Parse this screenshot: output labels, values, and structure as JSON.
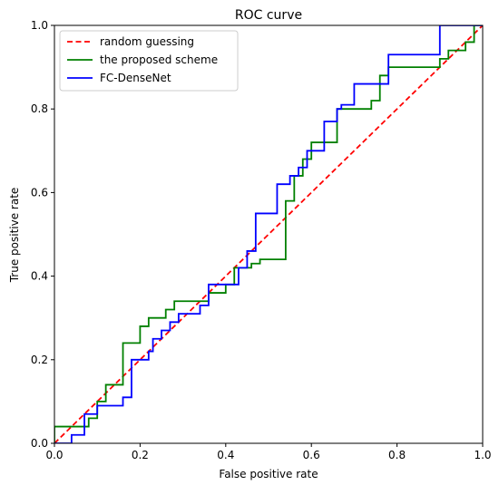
{
  "chart_data": {
    "type": "line",
    "title": "ROC curve",
    "xlabel": "False positive rate",
    "ylabel": "True positive rate",
    "xlim": [
      0.0,
      1.0
    ],
    "ylim": [
      0.0,
      1.0
    ],
    "xticks": [
      "0.0",
      "0.2",
      "0.4",
      "0.6",
      "0.8",
      "1.0"
    ],
    "yticks": [
      "0.0",
      "0.2",
      "0.4",
      "0.6",
      "0.8",
      "1.0"
    ],
    "grid": false,
    "legend_position": "top-left",
    "series": [
      {
        "name": "random guessing",
        "color": "#ff0000",
        "dash": "dashed",
        "x": [
          0.0,
          1.0
        ],
        "y": [
          0.0,
          1.0
        ]
      },
      {
        "name": "the proposed scheme",
        "color": "#008000",
        "dash": "solid",
        "x": [
          0.0,
          0.0,
          0.08,
          0.08,
          0.1,
          0.1,
          0.12,
          0.12,
          0.16,
          0.16,
          0.2,
          0.2,
          0.22,
          0.22,
          0.26,
          0.26,
          0.28,
          0.28,
          0.36,
          0.36,
          0.4,
          0.4,
          0.42,
          0.42,
          0.46,
          0.46,
          0.48,
          0.48,
          0.54,
          0.54,
          0.56,
          0.56,
          0.58,
          0.58,
          0.6,
          0.6,
          0.66,
          0.66,
          0.74,
          0.74,
          0.76,
          0.76,
          0.78,
          0.78,
          0.9,
          0.9,
          0.92,
          0.92,
          0.96,
          0.96,
          0.98,
          0.98,
          1.0
        ],
        "y": [
          0.0,
          0.04,
          0.04,
          0.06,
          0.06,
          0.1,
          0.1,
          0.14,
          0.14,
          0.24,
          0.24,
          0.28,
          0.28,
          0.3,
          0.3,
          0.32,
          0.32,
          0.34,
          0.34,
          0.36,
          0.36,
          0.38,
          0.38,
          0.42,
          0.42,
          0.43,
          0.43,
          0.44,
          0.44,
          0.58,
          0.58,
          0.64,
          0.64,
          0.68,
          0.68,
          0.72,
          0.72,
          0.8,
          0.8,
          0.82,
          0.82,
          0.88,
          0.88,
          0.9,
          0.9,
          0.92,
          0.92,
          0.94,
          0.94,
          0.96,
          0.96,
          1.0,
          1.0
        ]
      },
      {
        "name": "FC-DenseNet",
        "color": "#0000ff",
        "dash": "solid",
        "x": [
          0.0,
          0.04,
          0.04,
          0.07,
          0.07,
          0.1,
          0.1,
          0.12,
          0.12,
          0.16,
          0.16,
          0.18,
          0.18,
          0.22,
          0.22,
          0.23,
          0.23,
          0.25,
          0.25,
          0.27,
          0.27,
          0.29,
          0.29,
          0.34,
          0.34,
          0.36,
          0.36,
          0.43,
          0.43,
          0.45,
          0.45,
          0.47,
          0.47,
          0.52,
          0.52,
          0.55,
          0.55,
          0.57,
          0.57,
          0.59,
          0.59,
          0.63,
          0.63,
          0.65,
          0.65,
          0.66,
          0.66,
          0.67,
          0.67,
          0.7,
          0.7,
          0.78,
          0.78,
          0.84,
          0.84,
          0.9,
          0.9,
          0.91,
          0.91,
          1.0
        ],
        "y": [
          0.0,
          0.0,
          0.02,
          0.02,
          0.07,
          0.07,
          0.09,
          0.09,
          0.09,
          0.09,
          0.11,
          0.11,
          0.2,
          0.2,
          0.22,
          0.22,
          0.25,
          0.25,
          0.27,
          0.27,
          0.29,
          0.29,
          0.31,
          0.31,
          0.33,
          0.33,
          0.38,
          0.38,
          0.42,
          0.42,
          0.46,
          0.46,
          0.55,
          0.55,
          0.62,
          0.62,
          0.64,
          0.64,
          0.66,
          0.66,
          0.7,
          0.7,
          0.77,
          0.77,
          0.77,
          0.77,
          0.8,
          0.8,
          0.81,
          0.81,
          0.86,
          0.86,
          0.93,
          0.93,
          0.93,
          0.93,
          1.0,
          1.0,
          1.0,
          1.0
        ]
      }
    ]
  }
}
